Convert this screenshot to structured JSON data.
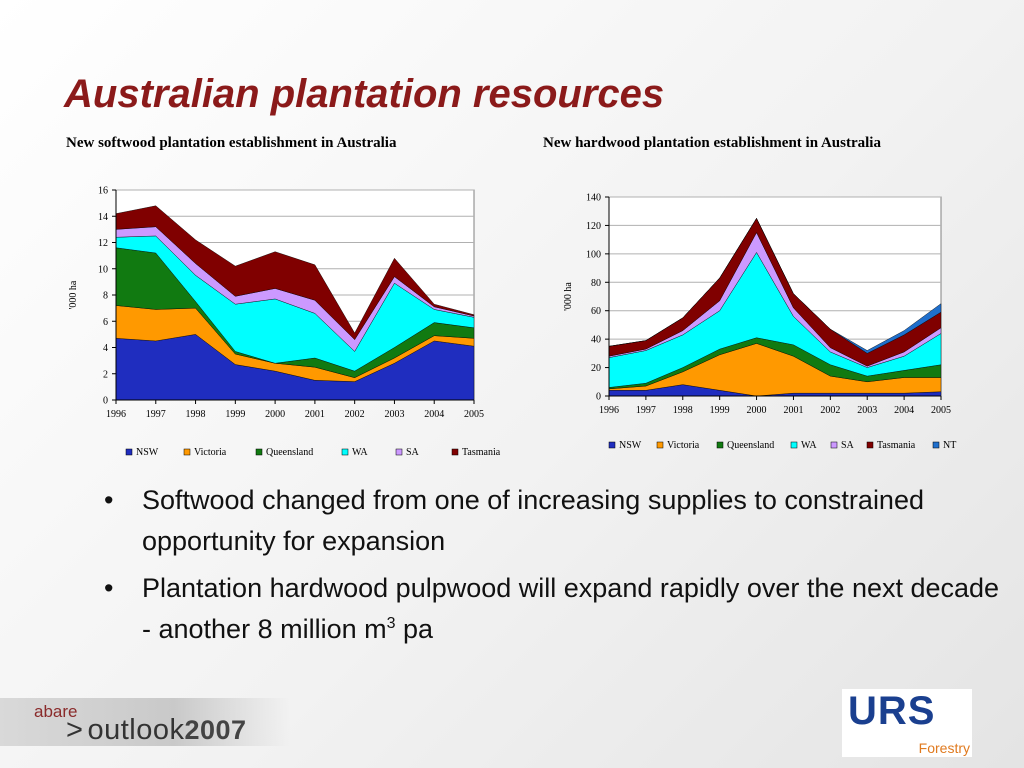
{
  "slide": {
    "title": "Australian plantation resources",
    "bullets": [
      "Softwood changed from one of increasing supplies to constrained opportunity for expansion",
      "Plantation hardwood pulpwood will expand rapidly over the next decade - another 8 million m"
    ],
    "bullet2_sup": "3",
    "bullet2_tail": " pa"
  },
  "footer": {
    "abare": "abare",
    "outlook_prefix": ">",
    "outlook": "outlook",
    "year": "2007"
  },
  "logo": {
    "mark": "URS",
    "sub": "Forestry"
  },
  "colors": {
    "title": "#8b1a1a",
    "NSW": "#1f2dbf",
    "Victoria": "#ff9900",
    "Queensland": "#117a11",
    "WA": "#00ffff",
    "SA": "#cc99ff",
    "Tasmania": "#800000",
    "NT": "#1f6fcc"
  },
  "chart_data": [
    {
      "type": "area",
      "stacked": true,
      "title": "New softwood plantation establishment in Australia",
      "ylabel": "'000 ha",
      "xlabel": "",
      "x": [
        1996,
        1997,
        1998,
        1999,
        2000,
        2001,
        2002,
        2003,
        2004,
        2005
      ],
      "ylim": [
        0,
        16
      ],
      "yticks": [
        0,
        2,
        4,
        6,
        8,
        10,
        12,
        14,
        16
      ],
      "grid": true,
      "legend": "bottom",
      "series": [
        {
          "name": "NSW",
          "values": [
            4.7,
            4.5,
            5.0,
            2.7,
            2.2,
            1.5,
            1.4,
            2.8,
            4.5,
            4.1
          ]
        },
        {
          "name": "Victoria",
          "values": [
            2.5,
            2.4,
            2.0,
            0.8,
            0.6,
            1.0,
            0.3,
            0.4,
            0.4,
            0.6
          ]
        },
        {
          "name": "Queensland",
          "values": [
            4.4,
            4.3,
            0.5,
            0.2,
            0.0,
            0.7,
            0.5,
            0.8,
            1.0,
            0.8
          ]
        },
        {
          "name": "WA",
          "values": [
            0.8,
            1.3,
            2.0,
            3.6,
            4.9,
            3.4,
            1.5,
            4.9,
            1.0,
            0.8
          ]
        },
        {
          "name": "SA",
          "values": [
            0.6,
            0.7,
            0.9,
            0.6,
            0.8,
            1.0,
            0.9,
            0.5,
            0.2,
            0.1
          ]
        },
        {
          "name": "Tasmania",
          "values": [
            1.2,
            1.6,
            1.8,
            2.3,
            2.8,
            2.7,
            0.5,
            1.4,
            0.2,
            0.1
          ]
        }
      ]
    },
    {
      "type": "area",
      "stacked": true,
      "title": "New hardwood plantation establishment in Australia",
      "ylabel": "'000 ha",
      "xlabel": "",
      "x": [
        1996,
        1997,
        1998,
        1999,
        2000,
        2001,
        2002,
        2003,
        2004,
        2005
      ],
      "ylim": [
        0,
        140
      ],
      "yticks": [
        0,
        20,
        40,
        60,
        80,
        100,
        120,
        140
      ],
      "grid": true,
      "legend": "bottom",
      "series": [
        {
          "name": "NSW",
          "values": [
            4,
            4,
            8,
            4,
            0,
            2,
            2,
            2,
            2,
            3
          ]
        },
        {
          "name": "Victoria",
          "values": [
            1,
            3,
            9,
            25,
            37,
            26,
            12,
            8,
            11,
            10
          ]
        },
        {
          "name": "Queensland",
          "values": [
            1,
            2,
            3,
            4,
            4,
            8,
            8,
            4,
            5,
            9
          ]
        },
        {
          "name": "WA",
          "values": [
            21,
            23,
            23,
            27,
            60,
            20,
            9,
            6,
            10,
            22
          ]
        },
        {
          "name": "SA",
          "values": [
            1,
            1,
            3,
            7,
            14,
            6,
            3,
            1,
            3,
            4
          ]
        },
        {
          "name": "Tasmania",
          "values": [
            7,
            6,
            9,
            16,
            10,
            10,
            13,
            9,
            12,
            11
          ]
        },
        {
          "name": "NT",
          "values": [
            0,
            0,
            0,
            0,
            0,
            0,
            0,
            2,
            3,
            6
          ]
        }
      ]
    }
  ]
}
